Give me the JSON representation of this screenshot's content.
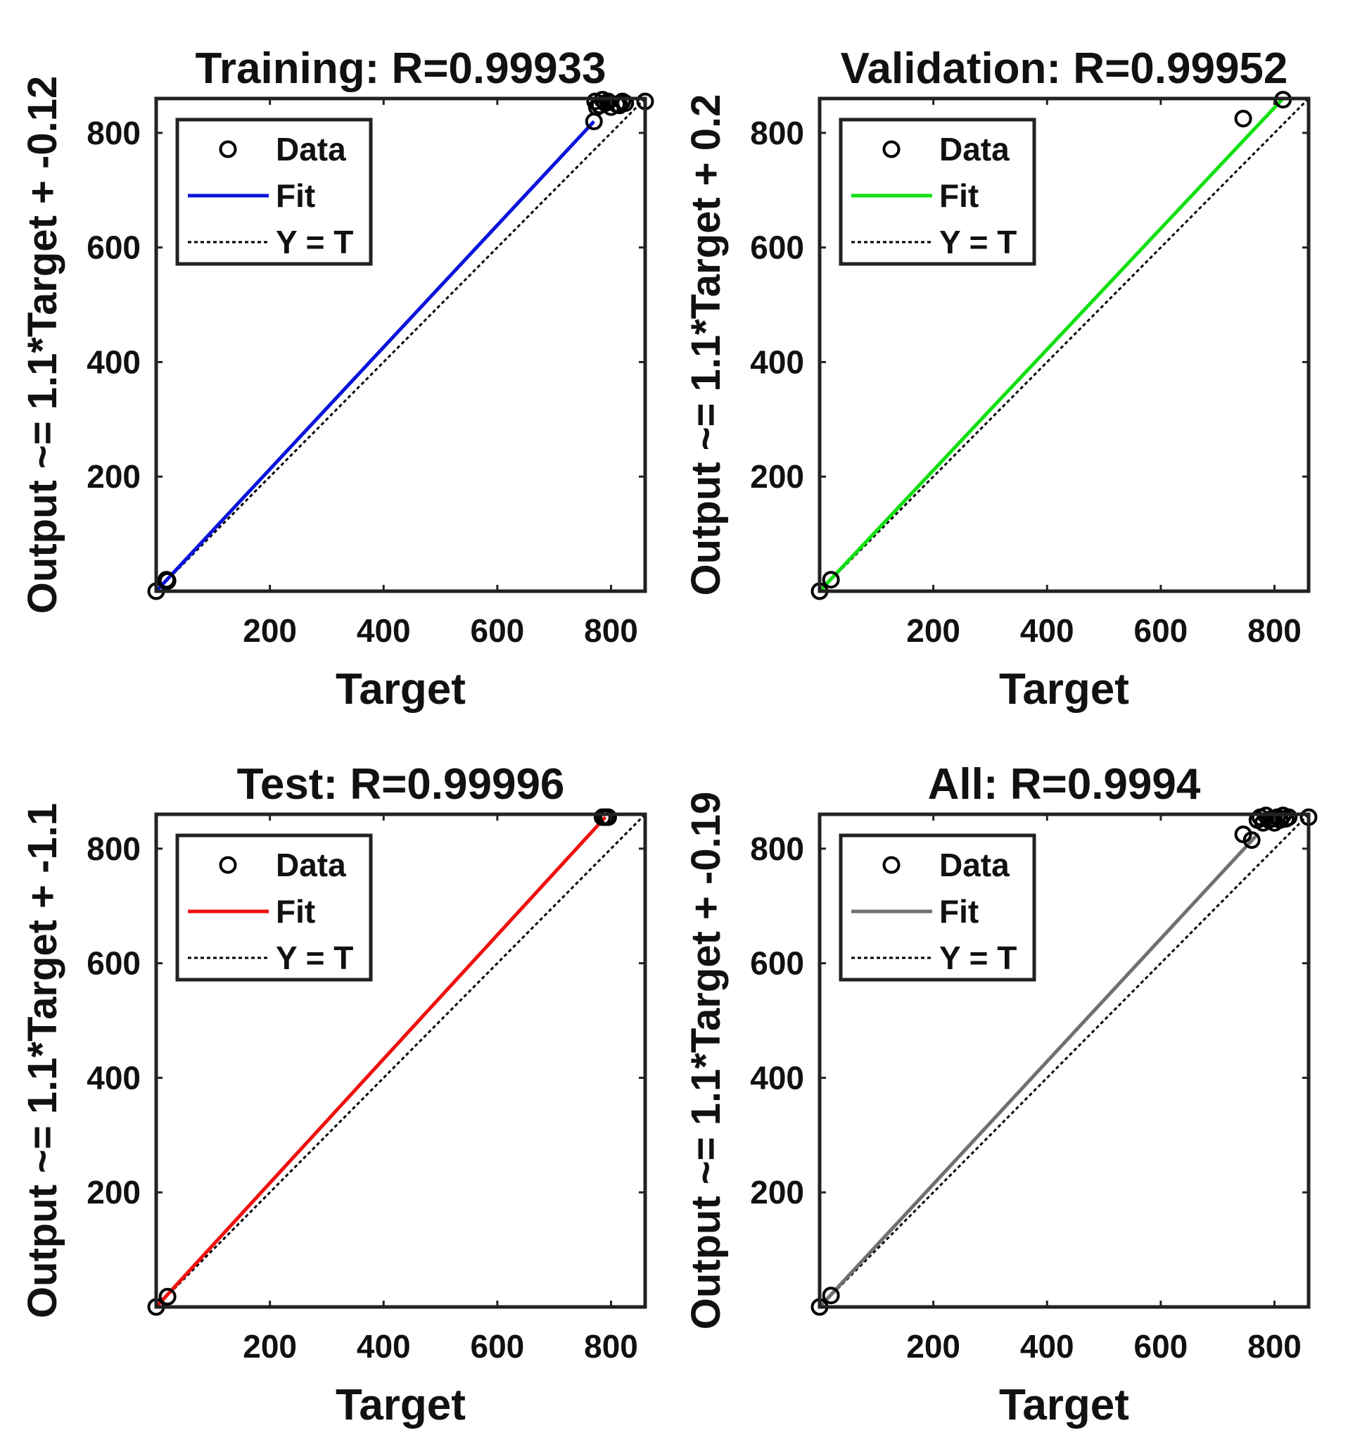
{
  "chart_data": [
    {
      "type": "scatter",
      "title": "Training: R=0.99933",
      "xlabel": "Target",
      "ylabel": "Output ~= 1.1*Target + -0.12",
      "xlim": [
        0,
        860
      ],
      "ylim": [
        0,
        860
      ],
      "xticks": [
        200,
        400,
        600,
        800
      ],
      "yticks": [
        200,
        400,
        600,
        800
      ],
      "tick_labels_x": [
        "200",
        "400",
        "600",
        "800"
      ],
      "tick_labels_y": [
        "200",
        "400",
        "600",
        "800"
      ],
      "fit_color": "#0a14dc",
      "fit_line": [
        [
          0,
          0
        ],
        [
          770,
          820
        ]
      ],
      "points": [
        [
          0,
          0
        ],
        [
          18,
          20
        ],
        [
          20,
          18
        ],
        [
          770,
          820
        ],
        [
          772,
          855
        ],
        [
          775,
          845
        ],
        [
          780,
          848
        ],
        [
          785,
          858
        ],
        [
          790,
          852
        ],
        [
          795,
          855
        ],
        [
          800,
          845
        ],
        [
          810,
          850
        ],
        [
          815,
          848
        ],
        [
          820,
          855
        ],
        [
          825,
          852
        ],
        [
          860,
          855
        ]
      ],
      "legend": [
        {
          "label": "Data",
          "kind": "marker"
        },
        {
          "label": "Fit",
          "kind": "fit"
        },
        {
          "label": "Y = T",
          "kind": "identity"
        }
      ]
    },
    {
      "type": "scatter",
      "title": "Validation: R=0.99952",
      "xlabel": "Target",
      "ylabel": "Output ~= 1.1*Target + 0.2",
      "xlim": [
        0,
        860
      ],
      "ylim": [
        0,
        860
      ],
      "xticks": [
        200,
        400,
        600,
        800
      ],
      "yticks": [
        200,
        400,
        600,
        800
      ],
      "tick_labels_x": [
        "200",
        "400",
        "600",
        "800"
      ],
      "tick_labels_y": [
        "200",
        "400",
        "600",
        "800"
      ],
      "fit_color": "#10e010",
      "fit_line": [
        [
          0,
          0
        ],
        [
          815,
          860
        ]
      ],
      "points": [
        [
          0,
          0
        ],
        [
          20,
          20
        ],
        [
          745,
          825
        ],
        [
          815,
          858
        ]
      ],
      "legend": [
        {
          "label": "Data",
          "kind": "marker"
        },
        {
          "label": "Fit",
          "kind": "fit"
        },
        {
          "label": "Y = T",
          "kind": "identity"
        }
      ]
    },
    {
      "type": "scatter",
      "title": "Test: R=0.99996",
      "xlabel": "Target",
      "ylabel": "Output ~= 1.1*Target + -1.1",
      "xlim": [
        0,
        860
      ],
      "ylim": [
        0,
        860
      ],
      "xticks": [
        200,
        400,
        600,
        800
      ],
      "yticks": [
        200,
        400,
        600,
        800
      ],
      "tick_labels_x": [
        "200",
        "400",
        "600",
        "800"
      ],
      "tick_labels_y": [
        "200",
        "400",
        "600",
        "800"
      ],
      "fit_color": "#f01010",
      "fit_line": [
        [
          0,
          0
        ],
        [
          790,
          855
        ]
      ],
      "points": [
        [
          0,
          0
        ],
        [
          20,
          18
        ],
        [
          785,
          855
        ],
        [
          790,
          855
        ],
        [
          795,
          855
        ]
      ],
      "legend": [
        {
          "label": "Data",
          "kind": "marker"
        },
        {
          "label": "Fit",
          "kind": "fit"
        },
        {
          "label": "Y = T",
          "kind": "identity"
        }
      ]
    },
    {
      "type": "scatter",
      "title": "All: R=0.9994",
      "xlabel": "Target",
      "ylabel": "Output ~= 1.1*Target + -0.19",
      "xlim": [
        0,
        860
      ],
      "ylim": [
        0,
        860
      ],
      "xticks": [
        200,
        400,
        600,
        800
      ],
      "yticks": [
        200,
        400,
        600,
        800
      ],
      "tick_labels_x": [
        "200",
        "400",
        "600",
        "800"
      ],
      "tick_labels_y": [
        "200",
        "400",
        "600",
        "800"
      ],
      "fit_color": "#707070",
      "fit_line": [
        [
          0,
          0
        ],
        [
          770,
          825
        ]
      ],
      "points": [
        [
          0,
          0
        ],
        [
          20,
          20
        ],
        [
          745,
          825
        ],
        [
          760,
          815
        ],
        [
          770,
          850
        ],
        [
          775,
          855
        ],
        [
          780,
          845
        ],
        [
          785,
          858
        ],
        [
          790,
          850
        ],
        [
          795,
          852
        ],
        [
          800,
          845
        ],
        [
          805,
          855
        ],
        [
          810,
          850
        ],
        [
          815,
          858
        ],
        [
          820,
          852
        ],
        [
          825,
          855
        ],
        [
          860,
          855
        ]
      ],
      "legend": [
        {
          "label": "Data",
          "kind": "marker"
        },
        {
          "label": "Fit",
          "kind": "fit"
        },
        {
          "label": "Y = T",
          "kind": "identity"
        }
      ]
    }
  ]
}
